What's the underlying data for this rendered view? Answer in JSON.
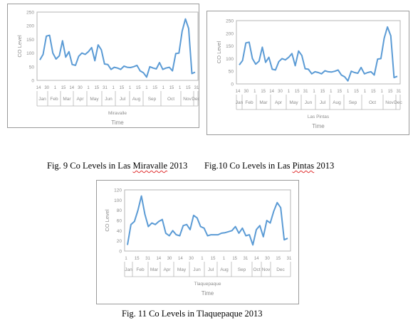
{
  "captions": {
    "fig9_prefix": "Fig. 9 Co Levels in Las ",
    "fig9_name": "Miravalle",
    "fig9_suffix": " 2013",
    "fig10_prefix": "Fig.10  Co Levels in Las ",
    "fig10_name": "Pintas",
    "fig10_suffix": " 2013",
    "fig11": "Fig. 11 Co Levels in Tlaquepaque 2013"
  },
  "chart_data": [
    {
      "type": "line",
      "title": "",
      "xlabel": "Time",
      "ylabel": "CO Level",
      "category_label": "Miravalle",
      "ylim": [
        0,
        250
      ],
      "yticks": [
        0,
        50,
        100,
        150,
        200,
        250
      ],
      "grid": false,
      "color": "#5b9bd5",
      "day_labels": [
        "14",
        "30",
        "1",
        "15",
        "14",
        "30",
        "1",
        "15",
        "31",
        "1",
        "15",
        "1",
        "15",
        "1",
        "15",
        "1",
        "15",
        "1",
        "15",
        "31"
      ],
      "month_labels": [
        "Jan",
        "Feb",
        "Mar",
        "Apr",
        "May",
        "Jun",
        "Jul",
        "Aug",
        "Sep",
        "Oct",
        "Nov",
        "Dec"
      ],
      "values": [
        75,
        95,
        162,
        165,
        100,
        78,
        90,
        145,
        85,
        105,
        58,
        55,
        88,
        100,
        95,
        105,
        120,
        72,
        130,
        112,
        60,
        58,
        40,
        48,
        45,
        40,
        52,
        48,
        47,
        50,
        55,
        35,
        28,
        12,
        50,
        45,
        42,
        65,
        40,
        45,
        48,
        35,
        98,
        100,
        180,
        225,
        190,
        25,
        30
      ]
    },
    {
      "type": "line",
      "title": "",
      "xlabel": "Time",
      "ylabel": "CO Level",
      "category_label": "Las Pintas",
      "ylim": [
        0,
        250
      ],
      "yticks": [
        0,
        50,
        100,
        150,
        200,
        250
      ],
      "grid": false,
      "color": "#5b9bd5",
      "day_labels": [
        "14",
        "30",
        "1",
        "15",
        "14",
        "30",
        "1",
        "15",
        "31",
        "1",
        "15",
        "1",
        "15",
        "1",
        "15",
        "1",
        "15",
        "1",
        "15",
        "31"
      ],
      "month_labels": [
        "Jan",
        "Feb",
        "Mar",
        "Apr",
        "May",
        "Jun",
        "Jul",
        "Aug",
        "Sep",
        "Oct",
        "Nov",
        "Dec"
      ],
      "values": [
        75,
        92,
        162,
        165,
        100,
        78,
        90,
        145,
        85,
        105,
        58,
        55,
        88,
        100,
        95,
        105,
        120,
        72,
        130,
        112,
        60,
        58,
        40,
        48,
        45,
        40,
        52,
        48,
        47,
        50,
        55,
        35,
        28,
        12,
        50,
        45,
        42,
        65,
        40,
        45,
        48,
        35,
        98,
        100,
        180,
        225,
        190,
        25,
        30
      ]
    },
    {
      "type": "line",
      "title": "",
      "xlabel": "Time",
      "ylabel": "CO Level",
      "category_label": "Tlaquepaque",
      "ylim": [
        0,
        120
      ],
      "yticks": [
        0,
        20,
        40,
        60,
        80,
        100,
        120
      ],
      "grid": false,
      "color": "#5b9bd5",
      "day_labels": [
        "1",
        "15",
        "31",
        "14",
        "30",
        "14",
        "30",
        "1",
        "15",
        "1",
        "15",
        "31",
        "14",
        "30",
        "15",
        "31"
      ],
      "month_labels": [
        "Jan",
        "Feb",
        "Mar",
        "Apr",
        "May",
        "Jun",
        "Jul",
        "Aug",
        "Sep",
        "Oct",
        "Nov",
        "Dec"
      ],
      "values": [
        12,
        52,
        58,
        80,
        108,
        72,
        48,
        55,
        52,
        58,
        62,
        35,
        30,
        40,
        32,
        30,
        50,
        52,
        42,
        70,
        65,
        48,
        45,
        30,
        32,
        32,
        32,
        35,
        36,
        38,
        40,
        48,
        35,
        45,
        30,
        32,
        12,
        42,
        50,
        28,
        60,
        55,
        78,
        95,
        85,
        22,
        25
      ]
    }
  ]
}
